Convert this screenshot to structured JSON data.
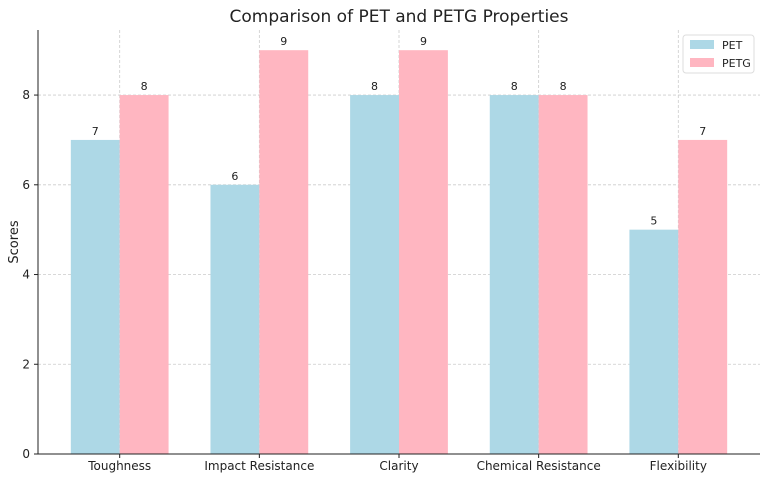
{
  "chart_data": {
    "type": "bar",
    "title": "Comparison of PET and PETG Properties",
    "xlabel": "",
    "ylabel": "Scores",
    "categories": [
      "Toughness",
      "Impact Resistance",
      "Clarity",
      "Chemical Resistance",
      "Flexibility"
    ],
    "series": [
      {
        "name": "PET",
        "values": [
          7,
          6,
          8,
          8,
          5
        ],
        "color": "#add8e6"
      },
      {
        "name": "PETG",
        "values": [
          8,
          9,
          9,
          8,
          7
        ],
        "color": "#ffb6c1"
      }
    ],
    "ylim": [
      0,
      9.45
    ],
    "yticks": [
      0,
      2,
      4,
      6,
      8
    ],
    "grid": true,
    "legend_position": "top-right",
    "data_labels": true
  }
}
